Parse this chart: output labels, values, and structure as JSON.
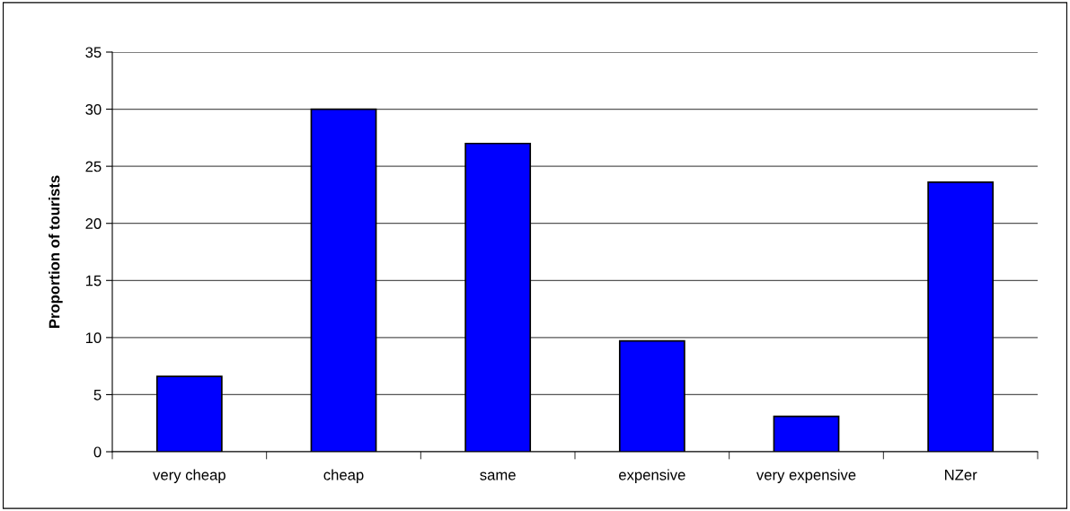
{
  "chart_data": {
    "type": "bar",
    "ylabel": "Proportion of tourists",
    "categories": [
      "very cheap",
      "cheap",
      "same",
      "expensive",
      "very expensive",
      "NZer"
    ],
    "values": [
      6.6,
      30,
      27,
      9.7,
      3.1,
      23.6
    ],
    "color": "#0000ff",
    "ylim": [
      0,
      35
    ],
    "yticks": [
      0,
      5,
      10,
      15,
      20,
      25,
      30,
      35
    ],
    "grid": "y"
  }
}
